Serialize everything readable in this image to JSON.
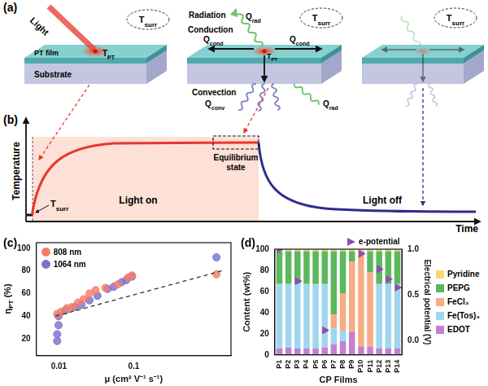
{
  "panel_a": {
    "label": "(a)",
    "light": "Light",
    "film": "PT film",
    "substrate": "Substrate",
    "t_pt": {
      "main": "T",
      "sub": "PT"
    },
    "t_surr": {
      "main": "T",
      "sub": "surr"
    },
    "radiation": "Radiation",
    "conduction": "Conduction",
    "convection": "Convection",
    "q_rad": {
      "main": "Q",
      "sub": "rad"
    },
    "q_cond": {
      "main": "Q",
      "sub": "cond"
    },
    "q_conv": {
      "main": "Q",
      "sub": "conv"
    }
  },
  "panel_b": {
    "label": "(b)",
    "y_label": "Temperature",
    "x_label": "Time",
    "light_on": "Light on",
    "light_off": "Light off",
    "equilibrium": "Equilibrium state",
    "t_surr": {
      "main": "T",
      "sub": "surr"
    }
  },
  "chart_data": [
    {
      "type": "scatter",
      "title": "(c)",
      "x_label": "μ (cm² V⁻¹ s⁻¹)",
      "y_label": {
        "main": "η",
        "sub": "PT",
        "after": " (%)"
      },
      "log": "x",
      "grid": false,
      "legend": "top left",
      "xlim": [
        0.005,
        2
      ],
      "xticks": [
        0.01,
        0.1
      ],
      "ylim": [
        5,
        105
      ],
      "yticks": [
        20,
        40,
        60,
        80,
        100
      ],
      "series": [
        {
          "name": "808 nm",
          "color": "#f47c68",
          "marker": "circle",
          "x": [
            0.0095,
            0.0108,
            0.0128,
            0.0149,
            0.018,
            0.0215,
            0.0256,
            0.031,
            0.042,
            0.061,
            0.084,
            0.095,
            1.28
          ],
          "values": [
            42,
            44,
            47,
            48,
            52,
            55,
            60,
            63,
            65,
            68,
            74,
            76,
            77
          ]
        },
        {
          "name": "1064 nm",
          "color": "#7b6fd0",
          "marker": "circle",
          "x": [
            0.0095,
            0.0095,
            0.0099,
            0.0099,
            0.0122,
            0.0164,
            0.02,
            0.0256,
            0.0328,
            0.045,
            0.054,
            0.069,
            0.08,
            0.095,
            1.28
          ],
          "values": [
            18,
            24,
            32,
            40,
            45,
            48,
            50,
            54,
            58,
            64,
            66,
            70,
            72,
            75,
            92
          ]
        }
      ],
      "fit": {
        "x": [
          0.009,
          1.5
        ],
        "values": [
          40,
          80
        ],
        "line_style": "dashed",
        "color": "#333333"
      }
    },
    {
      "type": "bar",
      "title": "(d)",
      "stacked": true,
      "grid": false,
      "legend": "right",
      "x_label": "CP Films",
      "y_label": "Content (wt%)",
      "y2_label": "Electrical potential (V)",
      "categories": [
        "P1",
        "P2",
        "P3",
        "P4",
        "P5",
        "P6",
        "P7",
        "P8",
        "P9",
        "P10",
        "P11",
        "P12",
        "P13",
        "P14"
      ],
      "ylim": [
        0,
        100
      ],
      "yticks": [
        0,
        20,
        40,
        60,
        80,
        100
      ],
      "y2lim": [
        -0.16,
        1.0
      ],
      "y2ticks": [
        {
          "value": 0,
          "label": "0.0"
        },
        {
          "value": 0.5,
          "label": "0.5"
        },
        {
          "value": 1,
          "label": "1.0"
        }
      ],
      "series": [
        {
          "name": "EDOT",
          "color": "#c47fd0",
          "values": [
            6,
            7,
            6,
            6,
            6,
            7,
            10,
            13,
            22,
            8,
            8,
            6,
            6,
            6
          ]
        },
        {
          "name": "Fe(Tos)₃",
          "color": "#9fd6ee",
          "values": [
            61,
            60,
            61,
            61,
            61,
            60,
            15,
            10,
            0,
            0,
            0,
            61,
            61,
            61
          ]
        },
        {
          "name": "FeCl₃",
          "color": "#f6ad85",
          "values": [
            0,
            0,
            0,
            0,
            0,
            0,
            13,
            35,
            66,
            90,
            70,
            0,
            0,
            0
          ]
        },
        {
          "name": "PEPG",
          "color": "#5cb85c",
          "values": [
            31,
            31,
            31,
            31,
            31,
            31,
            60,
            40,
            10,
            0,
            20,
            31,
            31,
            31
          ]
        },
        {
          "name": "Pyridine",
          "color": "#f7d774",
          "values": [
            2,
            2,
            2,
            2,
            2,
            2,
            2,
            2,
            2,
            2,
            2,
            2,
            2,
            2
          ]
        },
        {
          "name": "e-potential",
          "type": "scatter",
          "axis": "y2",
          "marker": "triangle",
          "color": "#8b4fb3",
          "values": [
            1.0,
            null,
            0.65,
            null,
            null,
            0.11,
            null,
            null,
            null,
            0.95,
            null,
            0.78,
            0.67,
            0.58
          ]
        }
      ]
    }
  ]
}
